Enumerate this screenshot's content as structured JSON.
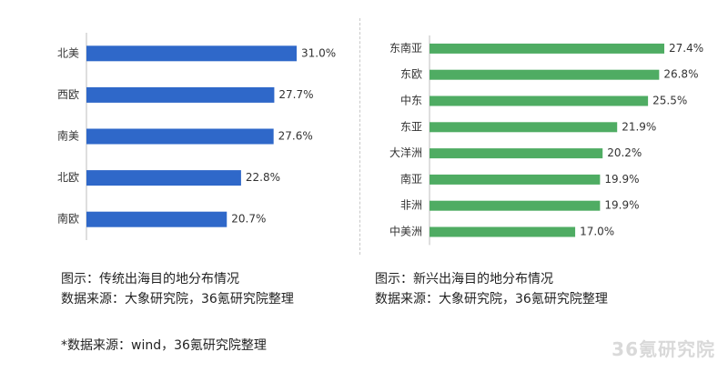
{
  "chart_data": [
    {
      "type": "bar",
      "orientation": "horizontal",
      "categories": [
        "北美",
        "西欧",
        "南美",
        "北欧",
        "南欧"
      ],
      "values": [
        31.0,
        27.7,
        27.6,
        22.8,
        20.7
      ],
      "value_labels": [
        "31.0%",
        "27.7%",
        "27.6%",
        "22.8%",
        "20.7%"
      ],
      "color": "#2f68c9",
      "xlim": [
        0,
        31.0
      ],
      "grid": false
    },
    {
      "type": "bar",
      "orientation": "horizontal",
      "categories": [
        "东南亚",
        "东欧",
        "中东",
        "东亚",
        "大洋洲",
        "南亚",
        "非洲",
        "中美洲"
      ],
      "values": [
        27.4,
        26.8,
        25.5,
        21.9,
        20.2,
        19.9,
        19.9,
        17.0
      ],
      "value_labels": [
        "27.4%",
        "26.8%",
        "25.5%",
        "21.9%",
        "20.2%",
        "19.9%",
        "19.9%",
        "17.0%"
      ],
      "color": "#4fac63",
      "xlim": [
        0,
        27.4
      ],
      "grid": false
    }
  ],
  "captions": {
    "left": {
      "line1": "图示：传统出海目的地分布情况",
      "line2": "数据来源：大象研究院，36氪研究院整理"
    },
    "right": {
      "line1": "图示：新兴出海目的地分布情况",
      "line2": "数据来源：大象研究院，36氪研究院整理"
    }
  },
  "footnote": "*数据来源：wind，36氪研究院整理",
  "watermark": "36氪研究院"
}
